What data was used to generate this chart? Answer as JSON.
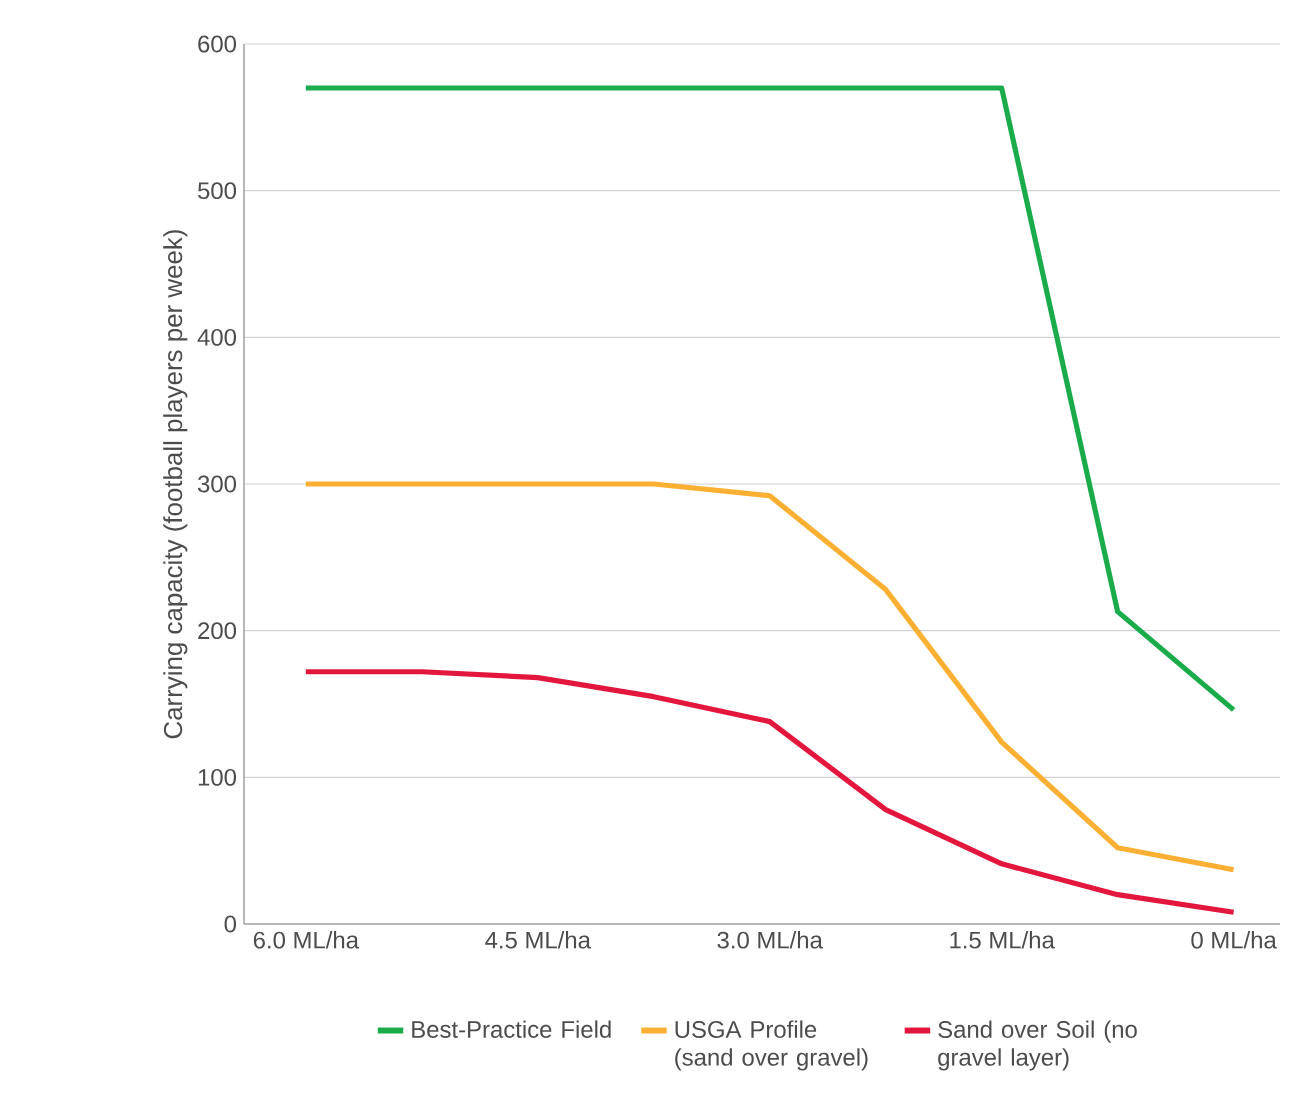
{
  "chart_data": {
    "type": "line",
    "ylabel": "Carrying capacity (football players per week)",
    "xlim": [
      6.4,
      -0.3
    ],
    "ylim": [
      0,
      600
    ],
    "xticks": [
      {
        "value": 6.0,
        "label": "6.0 ML/ha"
      },
      {
        "value": 4.5,
        "label": "4.5 ML/ha"
      },
      {
        "value": 3.0,
        "label": "3.0 ML/ha"
      },
      {
        "value": 1.5,
        "label": "1.5 ML/ha"
      },
      {
        "value": 0,
        "label": "0 ML/ha"
      }
    ],
    "yticks": [
      0,
      100,
      200,
      300,
      400,
      500,
      600
    ],
    "grid": "y",
    "legend": "bottom",
    "marker": "none",
    "line_style": "solid",
    "series": [
      {
        "name": "Best-Practice Field",
        "color": "#1aab4b",
        "x": [
          6.0,
          1.5,
          0.75,
          0
        ],
        "values": [
          570,
          570,
          213,
          146
        ]
      },
      {
        "name": "USGA Profile (sand over gravel)",
        "color": "#fbb034",
        "x": [
          6.0,
          3.75,
          3.0,
          2.25,
          1.5,
          0.75,
          0
        ],
        "values": [
          300,
          300,
          292,
          228,
          124,
          52,
          37
        ]
      },
      {
        "name": "Sand over Soil (no gravel layer)",
        "color": "#e3173e",
        "x": [
          6.0,
          5.25,
          4.5,
          3.75,
          3.0,
          2.25,
          1.5,
          0.75,
          0
        ],
        "values": [
          172,
          172,
          168,
          155,
          138,
          78,
          41,
          20,
          8
        ]
      }
    ]
  }
}
